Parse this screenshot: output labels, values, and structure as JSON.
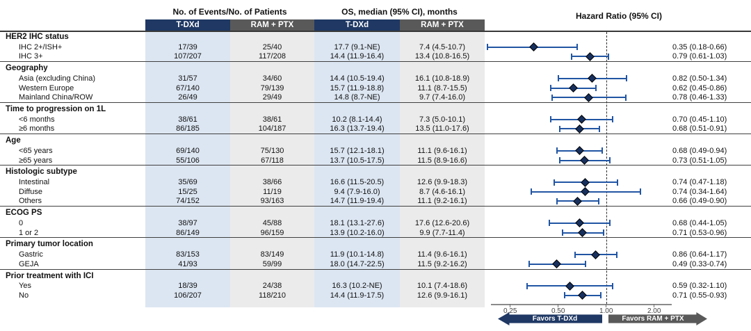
{
  "header": {
    "events_group": "No. of Events/No. of Patients",
    "os_group": "OS, median (95% CI), months",
    "hr_group": "Hazard Ratio (95% CI)",
    "col_tdxd": "T-DXd",
    "col_ram": "RAM + PTX"
  },
  "favors": {
    "left": "Favors T-DXd",
    "right": "Favors RAM + PTX"
  },
  "colors": {
    "navy_header": "#1f3864",
    "gray_header": "#595959",
    "light_blue_column": "#dce6f2",
    "light_gray_column": "#ebebeb",
    "whisker_blue": "#2155a3",
    "diamond_navy": "#17305e"
  },
  "chart_data": {
    "type": "forest",
    "title": "",
    "scale": "log",
    "ref_line": 1.0,
    "axis": {
      "ticks": [
        0.25,
        0.5,
        1.0,
        2.0
      ],
      "tick_labels": [
        "0.25",
        "0.50",
        "1.00",
        "2.00"
      ]
    },
    "column_headers": {
      "events": [
        "T-DXd",
        "RAM + PTX"
      ],
      "os": [
        "T-DXd",
        "RAM + PTX"
      ]
    },
    "groups": [
      {
        "label": "HER2 IHC status",
        "rows": [
          {
            "label": "IHC 2+/ISH+",
            "events_tdxd": "17/39",
            "events_ram": "25/40",
            "os_tdxd": "17.7 (9.1-NE)",
            "os_ram": "7.4 (4.5-10.7)",
            "hr": 0.35,
            "ci_low": 0.18,
            "ci_high": 0.66,
            "hr_text": "0.35 (0.18-0.66)"
          },
          {
            "label": "IHC 3+",
            "events_tdxd": "107/207",
            "events_ram": "117/208",
            "os_tdxd": "14.4 (11.9-16.4)",
            "os_ram": "13.4 (10.8-16.5)",
            "hr": 0.79,
            "ci_low": 0.61,
            "ci_high": 1.03,
            "hr_text": "0.79 (0.61-1.03)"
          }
        ]
      },
      {
        "label": "Geography",
        "rows": [
          {
            "label": "Asia (excluding China)",
            "events_tdxd": "31/57",
            "events_ram": "34/60",
            "os_tdxd": "14.4 (10.5-19.4)",
            "os_ram": "16.1 (10.8-18.9)",
            "hr": 0.82,
            "ci_low": 0.5,
            "ci_high": 1.34,
            "hr_text": "0.82 (0.50-1.34)"
          },
          {
            "label": "Western Europe",
            "events_tdxd": "67/140",
            "events_ram": "79/139",
            "os_tdxd": "15.7 (11.9-18.8)",
            "os_ram": "11.1 (8.7-15.5)",
            "hr": 0.62,
            "ci_low": 0.45,
            "ci_high": 0.86,
            "hr_text": "0.62 (0.45-0.86)"
          },
          {
            "label": "Mainland China/ROW",
            "events_tdxd": "26/49",
            "events_ram": "29/49",
            "os_tdxd": "14.8 (8.7-NE)",
            "os_ram": "9.7 (7.4-16.0)",
            "hr": 0.78,
            "ci_low": 0.46,
            "ci_high": 1.33,
            "hr_text": "0.78 (0.46-1.33)"
          }
        ]
      },
      {
        "label": "Time to progression on 1L",
        "rows": [
          {
            "label": "<6 months",
            "events_tdxd": "38/61",
            "events_ram": "38/61",
            "os_tdxd": "10.2 (8.1-14.4)",
            "os_ram": "7.3 (5.0-10.1)",
            "hr": 0.7,
            "ci_low": 0.45,
            "ci_high": 1.1,
            "hr_text": "0.70 (0.45-1.10)"
          },
          {
            "label": "≥6 months",
            "events_tdxd": "86/185",
            "events_ram": "104/187",
            "os_tdxd": "16.3 (13.7-19.4)",
            "os_ram": "13.5 (11.0-17.6)",
            "hr": 0.68,
            "ci_low": 0.51,
            "ci_high": 0.91,
            "hr_text": "0.68 (0.51-0.91)"
          }
        ]
      },
      {
        "label": "Age",
        "rows": [
          {
            "label": "<65 years",
            "events_tdxd": "69/140",
            "events_ram": "75/130",
            "os_tdxd": "15.7 (12.1-18.1)",
            "os_ram": "11.1 (9.6-16.1)",
            "hr": 0.68,
            "ci_low": 0.49,
            "ci_high": 0.94,
            "hr_text": "0.68 (0.49-0.94)"
          },
          {
            "label": "≥65 years",
            "events_tdxd": "55/106",
            "events_ram": "67/118",
            "os_tdxd": "13.7 (10.5-17.5)",
            "os_ram": "11.5 (8.9-16.6)",
            "hr": 0.73,
            "ci_low": 0.51,
            "ci_high": 1.05,
            "hr_text": "0.73 (0.51-1.05)"
          }
        ]
      },
      {
        "label": "Histologic subtype",
        "rows": [
          {
            "label": "Intestinal",
            "events_tdxd": "35/69",
            "events_ram": "38/66",
            "os_tdxd": "16.6 (11.5-20.5)",
            "os_ram": "12.6 (9.9-18.3)",
            "hr": 0.74,
            "ci_low": 0.47,
            "ci_high": 1.18,
            "hr_text": "0.74 (0.47-1.18)"
          },
          {
            "label": "Diffuse",
            "events_tdxd": "15/25",
            "events_ram": "11/19",
            "os_tdxd": "9.4 (7.9-16.0)",
            "os_ram": "8.7 (4.6-16.1)",
            "hr": 0.74,
            "ci_low": 0.34,
            "ci_high": 1.64,
            "hr_text": "0.74 (0.34-1.64)"
          },
          {
            "label": "Others",
            "events_tdxd": "74/152",
            "events_ram": "93/163",
            "os_tdxd": "14.7 (11.9-19.4)",
            "os_ram": "11.1 (9.2-16.1)",
            "hr": 0.66,
            "ci_low": 0.49,
            "ci_high": 0.9,
            "hr_text": "0.66 (0.49-0.90)"
          }
        ]
      },
      {
        "label": "ECOG PS",
        "rows": [
          {
            "label": "0",
            "events_tdxd": "38/97",
            "events_ram": "45/88",
            "os_tdxd": "18.1 (13.1-27.6)",
            "os_ram": "17.6 (12.6-20.6)",
            "hr": 0.68,
            "ci_low": 0.44,
            "ci_high": 1.05,
            "hr_text": "0.68 (0.44-1.05)"
          },
          {
            "label": "1 or 2",
            "events_tdxd": "86/149",
            "events_ram": "96/159",
            "os_tdxd": "13.9 (10.2-16.0)",
            "os_ram": "9.9 (7.7-11.4)",
            "hr": 0.71,
            "ci_low": 0.53,
            "ci_high": 0.96,
            "hr_text": "0.71 (0.53-0.96)"
          }
        ]
      },
      {
        "label": "Primary tumor location",
        "rows": [
          {
            "label": "Gastric",
            "events_tdxd": "83/153",
            "events_ram": "83/149",
            "os_tdxd": "11.9 (10.1-14.8)",
            "os_ram": "11.4 (9.6-16.1)",
            "hr": 0.86,
            "ci_low": 0.64,
            "ci_high": 1.17,
            "hr_text": "0.86 (0.64-1.17)"
          },
          {
            "label": "GEJA",
            "events_tdxd": "41/93",
            "events_ram": "59/99",
            "os_tdxd": "18.0 (14.7-22.5)",
            "os_ram": "11.5 (9.2-16.2)",
            "hr": 0.49,
            "ci_low": 0.33,
            "ci_high": 0.74,
            "hr_text": "0.49 (0.33-0.74)"
          }
        ]
      },
      {
        "label": "Prior treatment with ICI",
        "rows": [
          {
            "label": "Yes",
            "events_tdxd": "18/39",
            "events_ram": "24/38",
            "os_tdxd": "16.3 (10.2-NE)",
            "os_ram": "10.1 (7.4-18.6)",
            "hr": 0.59,
            "ci_low": 0.32,
            "ci_high": 1.1,
            "hr_text": "0.59 (0.32-1.10)"
          },
          {
            "label": "No",
            "events_tdxd": "106/207",
            "events_ram": "118/210",
            "os_tdxd": "14.4 (11.9-17.5)",
            "os_ram": "12.6 (9.9-16.1)",
            "hr": 0.71,
            "ci_low": 0.55,
            "ci_high": 0.93,
            "hr_text": "0.71 (0.55-0.93)"
          }
        ]
      }
    ]
  }
}
